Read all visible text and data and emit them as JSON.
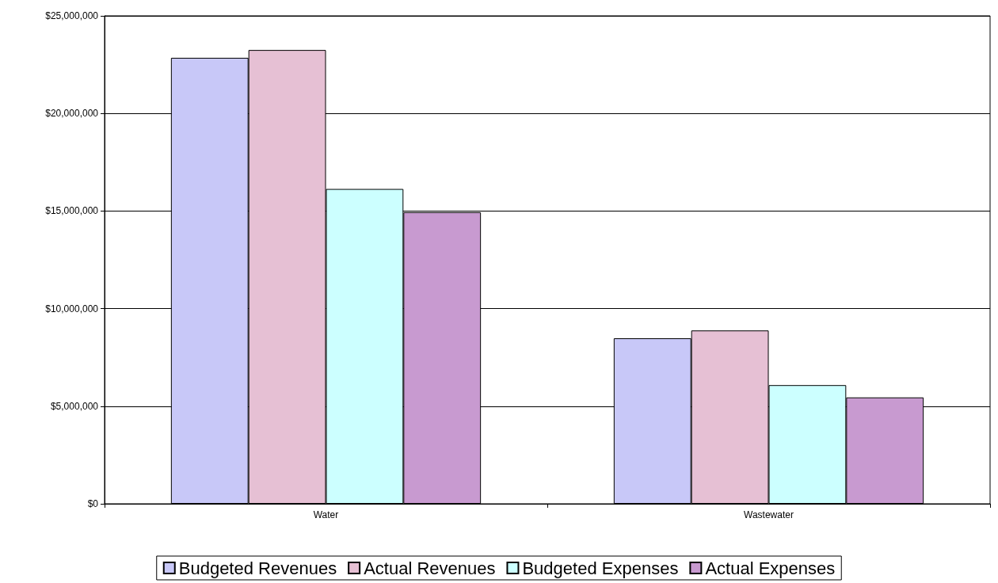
{
  "chart_data": {
    "type": "bar",
    "categories": [
      "Water",
      "Wastewater"
    ],
    "series": [
      {
        "name": "Budgeted Revenues",
        "color": "#c8c8f8",
        "values": [
          22850000,
          8480000
        ]
      },
      {
        "name": "Actual Revenues",
        "color": "#e6c0d4",
        "values": [
          23250000,
          8880000
        ]
      },
      {
        "name": "Budgeted Expenses",
        "color": "#ccffff",
        "values": [
          16130000,
          6080000
        ]
      },
      {
        "name": "Actual Expenses",
        "color": "#c89ad0",
        "values": [
          14940000,
          5450000
        ]
      }
    ],
    "ylim": [
      0,
      25000000
    ],
    "yticks": [
      {
        "value": 0,
        "label": "$0"
      },
      {
        "value": 5000000,
        "label": "$5,000,000"
      },
      {
        "value": 10000000,
        "label": "$10,000,000"
      },
      {
        "value": 15000000,
        "label": "$15,000,000"
      },
      {
        "value": 20000000,
        "label": "$20,000,000"
      },
      {
        "value": 25000000,
        "label": "$25,000,000"
      }
    ],
    "grid": "y",
    "legend": "bottom"
  }
}
